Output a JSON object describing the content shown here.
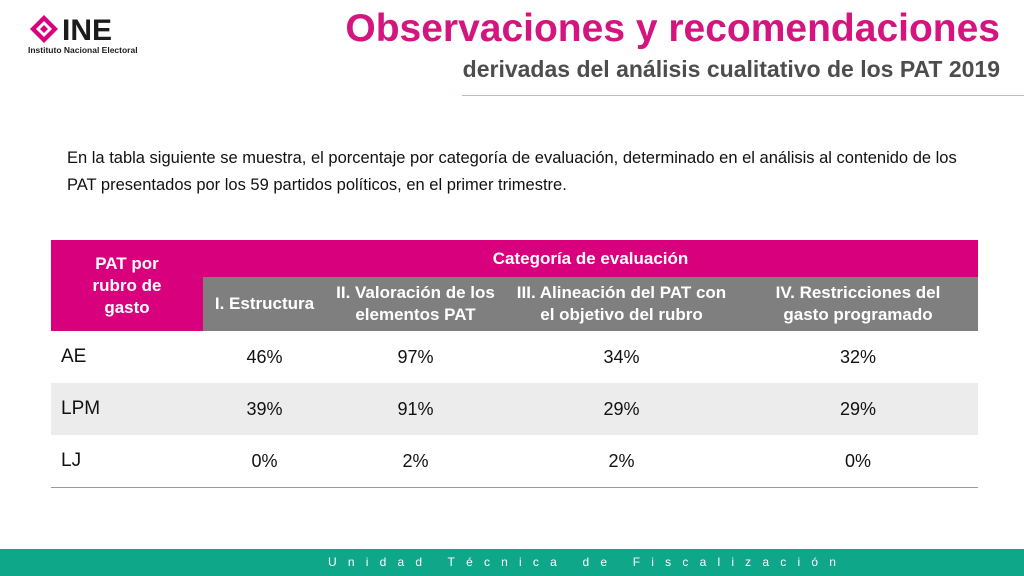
{
  "logo": {
    "word": "INE",
    "subtitle": "Instituto Nacional Electoral",
    "colors": {
      "mark": "#d9007e",
      "text": "#1c1c1c"
    }
  },
  "header": {
    "title": "Observaciones y recomendaciones",
    "subtitle": "derivadas del análisis cualitativo de los PAT 2019",
    "title_color": "#d4147f"
  },
  "intro": "En la tabla siguiente se muestra, el porcentaje por categoría de evaluación, determinado en el análisis al contenido de los PAT presentados por los 59 partidos políticos, en el primer trimestre.",
  "table": {
    "row_header": "PAT por rubro de gasto",
    "group_header": "Categoría de evaluación",
    "columns": [
      "I. Estructura",
      "II. Valoración de los elementos PAT",
      "III. Alineación del PAT con el objetivo del rubro",
      "IV. Restricciones del gasto programado"
    ],
    "rows": [
      {
        "label": "AE",
        "values": [
          "46%",
          "97%",
          "34%",
          "32%"
        ]
      },
      {
        "label": "LPM",
        "values": [
          "39%",
          "91%",
          "29%",
          "29%"
        ]
      },
      {
        "label": "LJ",
        "values": [
          "0%",
          "2%",
          "2%",
          "0%"
        ]
      }
    ],
    "colors": {
      "header_magenta": "#d9007e",
      "header_grey": "#7f7f7f",
      "shade": "#ececec"
    }
  },
  "footer": {
    "text": "Unidad Técnica de Fiscalización",
    "color": "#0ea78a"
  }
}
